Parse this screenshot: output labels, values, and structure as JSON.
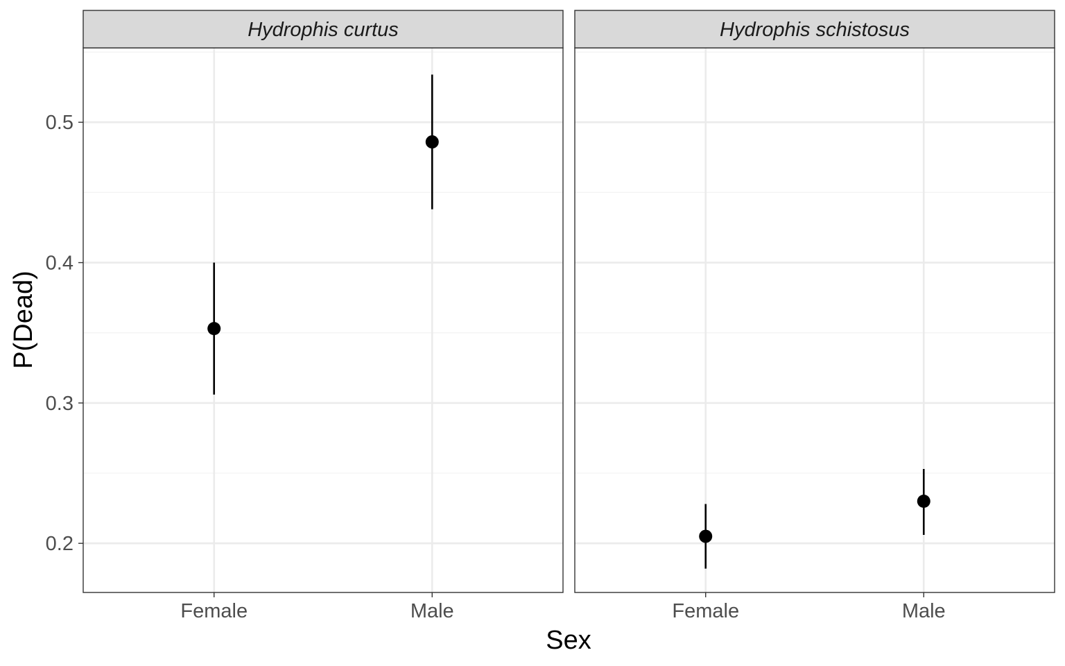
{
  "chart_data": {
    "type": "scatter",
    "facet_by": "species",
    "facets": [
      {
        "title": "Hydrophis curtus",
        "categories": [
          "Female",
          "Male"
        ],
        "points": [
          {
            "x": "Female",
            "y": 0.353,
            "lower": 0.306,
            "upper": 0.4
          },
          {
            "x": "Male",
            "y": 0.486,
            "lower": 0.438,
            "upper": 0.534
          }
        ]
      },
      {
        "title": "Hydrophis schistosus",
        "categories": [
          "Female",
          "Male"
        ],
        "points": [
          {
            "x": "Female",
            "y": 0.205,
            "lower": 0.182,
            "upper": 0.228
          },
          {
            "x": "Male",
            "y": 0.23,
            "lower": 0.206,
            "upper": 0.253
          }
        ]
      }
    ],
    "xlabel": "Sex",
    "ylabel": "P(Dead)",
    "ylim": [
      0.165,
      0.553
    ],
    "yticks": [
      0.2,
      0.3,
      0.4,
      0.5
    ],
    "ytick_labels": [
      "0.2",
      "0.3",
      "0.4",
      "0.5"
    ],
    "y_minor_ticks": [
      0.25,
      0.35,
      0.45,
      0.55
    ],
    "grid": true,
    "legend": "none",
    "colors": {
      "point": "#000000",
      "errorbar": "#000000",
      "strip_fill": "#d9d9d9",
      "panel_border": "#333333",
      "grid_major": "#ebebeb",
      "grid_minor": "#f3f3f3"
    }
  }
}
